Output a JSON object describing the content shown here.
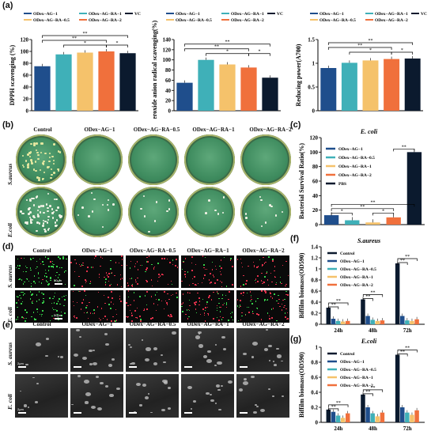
{
  "panel_labels": {
    "a": "(a)",
    "b": "(b)",
    "c": "(c)",
    "d": "(d)",
    "e": "(e)",
    "f": "(f)",
    "g": "(g)"
  },
  "colors": {
    "og1": "#1f4e8c",
    "ra05": "#3fb0b8",
    "ra1": "#f5c26b",
    "ra2": "#f0703c",
    "vc": "#0b1a2e",
    "grid": "#cccccc"
  },
  "legend_a": [
    "ODex−AG−1",
    "ODex−AG−RA−1",
    "ODex−AG−RA−0.5",
    "ODex−AG−RA−2",
    "VC"
  ],
  "sig": "**",
  "sig_single": "*",
  "col_headers": [
    "Control",
    "ODex−AG−1",
    "ODex−AG−RA−0.5",
    "ODex−AG−RA−1",
    "ODex−AG−RA−2"
  ],
  "row_headers": {
    "sa": "S.aureus",
    "ec": "E.coli",
    "sa2": "S. aureus",
    "ec2": "E. coli"
  },
  "scale": {
    "fluo": "50μm",
    "sem": "2μm"
  },
  "chart_data": [
    {
      "type": "bar",
      "panel": "a1",
      "ylabel": "DPPH scavenging (%)",
      "ylim": [
        0,
        120
      ],
      "yticks": [
        0,
        20,
        40,
        60,
        80,
        100,
        120
      ],
      "categories": [
        "ODex−AG−1",
        "ODex−AG−RA−0.5",
        "ODex−AG−RA−1",
        "ODex−AG−RA−2",
        "VC"
      ],
      "values": [
        75,
        95,
        98,
        100,
        97
      ]
    },
    {
      "type": "bar",
      "panel": "a2",
      "ylabel": "Superoxide anion radical scavenging(%)",
      "ylim": [
        0,
        140
      ],
      "yticks": [
        0,
        20,
        40,
        60,
        80,
        100,
        120,
        140
      ],
      "categories": [
        "ODex−AG−1",
        "ODex−AG−RA−0.5",
        "ODex−AG−RA−1",
        "ODex−AG−RA−2",
        "VC"
      ],
      "values": [
        55,
        100,
        91,
        85,
        65
      ]
    },
    {
      "type": "bar",
      "panel": "a3",
      "ylabel": "Reducing power(A700)",
      "ylim": [
        0,
        1.5
      ],
      "yticks": [
        0,
        0.5,
        1.0,
        1.5
      ],
      "categories": [
        "ODex−AG−1",
        "ODex−AG−RA−0.5",
        "ODex−AG−RA−1",
        "ODex−AG−RA−2",
        "VC"
      ],
      "values": [
        0.9,
        1.01,
        1.06,
        1.09,
        1.1
      ]
    },
    {
      "type": "bar",
      "panel": "c",
      "title": "E. coli",
      "ylabel": "Bacterial Survival Ratio(%)",
      "ylim": [
        0,
        120
      ],
      "yticks": [
        0,
        20,
        40,
        60,
        80,
        100,
        120
      ],
      "categories": [
        "ODex−AG−1",
        "ODex−AG−RA−0.5",
        "ODex−AG−RA−1",
        "ODex−AG−RA−2",
        "PBS"
      ],
      "values": [
        13,
        6,
        3,
        10,
        100
      ],
      "legend": [
        "ODex−AG−1",
        "ODex−AG−RA−0.5",
        "ODex−AG−RA−1",
        "ODex−AG−RA−2",
        "PBS"
      ]
    },
    {
      "type": "bar",
      "panel": "f",
      "title": "S.aureus",
      "ylabel": "Biffilm biomass(OD590)",
      "ylim": [
        0,
        1.4
      ],
      "yticks": [
        0,
        0.2,
        0.4,
        0.6,
        0.8,
        1.0,
        1.2,
        1.4
      ],
      "categories": [
        "24h",
        "48h",
        "72h"
      ],
      "legend": [
        "Control",
        "ODex−AG−1",
        "ODex−AG−RA−0.5",
        "ODex−AG−RA−1",
        "ODex−AG−RA−2"
      ],
      "series": [
        {
          "name": "Control",
          "values": [
            0.3,
            0.45,
            1.1
          ]
        },
        {
          "name": "ODex−AG−1",
          "values": [
            0.1,
            0.15,
            0.15
          ]
        },
        {
          "name": "ODex−AG−RA−0.5",
          "values": [
            0.06,
            0.08,
            0.07
          ]
        },
        {
          "name": "ODex−AG−RA−1",
          "values": [
            0.05,
            0.06,
            0.06
          ]
        },
        {
          "name": "ODex−AG−RA−2",
          "values": [
            0.06,
            0.07,
            0.09
          ]
        }
      ]
    },
    {
      "type": "bar",
      "panel": "g",
      "title": "E.coli",
      "ylabel": "Biffilm biomass(OD590)",
      "ylim": [
        0,
        1.0
      ],
      "yticks": [
        0,
        0.2,
        0.4,
        0.6,
        0.8,
        1.0
      ],
      "categories": [
        "24h",
        "48h",
        "72h"
      ],
      "legend": [
        "Control",
        "ODex−AG−1",
        "ODex−AG−RA−0.5",
        "ODex−AG−RA−1",
        "ODex−AG−RA−2"
      ],
      "series": [
        {
          "name": "Control",
          "values": [
            0.17,
            0.37,
            0.9
          ]
        },
        {
          "name": "ODex−AG−1",
          "values": [
            0.14,
            0.2,
            0.2
          ]
        },
        {
          "name": "ODex−AG−RA−0.5",
          "values": [
            0.09,
            0.12,
            0.13
          ]
        },
        {
          "name": "ODex−AG−RA−1",
          "values": [
            0.06,
            0.08,
            0.1
          ]
        },
        {
          "name": "ODex−AG−RA−2",
          "values": [
            0.12,
            0.13,
            0.16
          ]
        }
      ]
    }
  ]
}
